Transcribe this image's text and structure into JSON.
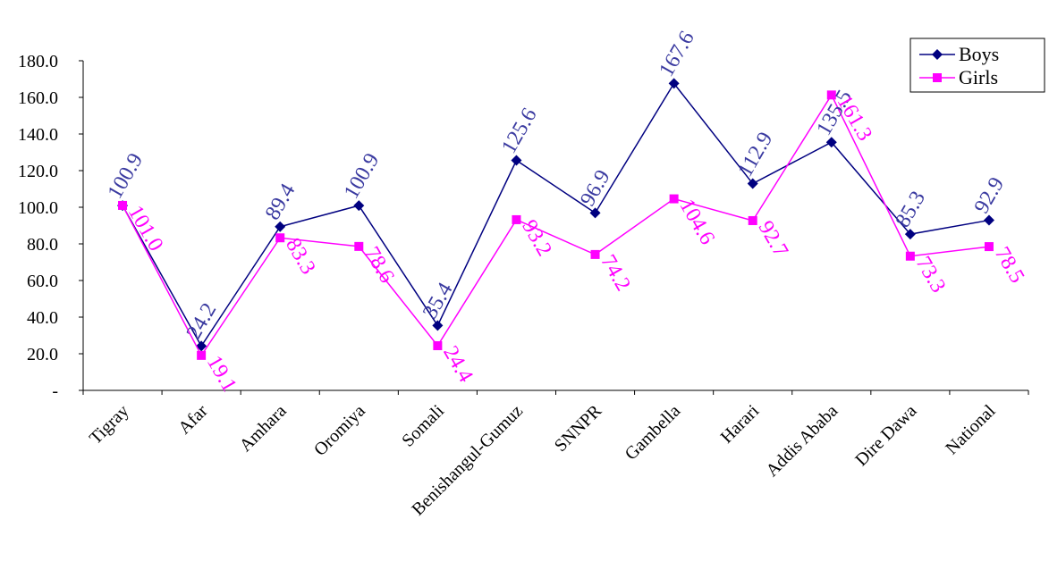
{
  "chart_data": {
    "type": "line",
    "categories": [
      "Tigray",
      "Afar",
      "Amhara",
      "Oromiya",
      "Somali",
      "Benishangul-Gumuz",
      "SNNPR",
      "Gambella",
      "Harari",
      "Addis Ababa",
      "Dire Dawa",
      "National"
    ],
    "series": [
      {
        "name": "Boys",
        "color": "#000080",
        "marker": "diamond",
        "values": [
          100.9,
          24.2,
          89.4,
          100.9,
          35.4,
          125.6,
          96.9,
          167.6,
          112.9,
          135.5,
          85.3,
          92.9
        ],
        "labels": [
          "100.9",
          "24.2",
          "89.4",
          "100.9",
          "35.4",
          "125.6",
          "96.9",
          "167.6",
          "112.9",
          "135.5",
          "85.3",
          "92.9"
        ],
        "label_color": "#3a3aa0"
      },
      {
        "name": "Girls",
        "color": "#ff00ff",
        "marker": "square",
        "values": [
          101.0,
          19.1,
          83.3,
          78.6,
          24.4,
          93.2,
          74.2,
          104.6,
          92.7,
          161.3,
          73.3,
          78.5
        ],
        "labels": [
          "101.0",
          "19.1",
          "83.3",
          "78.6",
          "24.4",
          "93.2",
          "74.2",
          "104.6",
          "92.7",
          "161.3",
          "73.3",
          "78.5"
        ],
        "label_color": "#ff00ff"
      }
    ],
    "y_ticks": [
      "-",
      "20.0",
      "40.0",
      "60.0",
      "80.0",
      "100.0",
      "120.0",
      "140.0",
      "160.0",
      "180.0"
    ],
    "ylim": [
      0,
      180
    ],
    "grid": false,
    "legend": "top-right"
  }
}
